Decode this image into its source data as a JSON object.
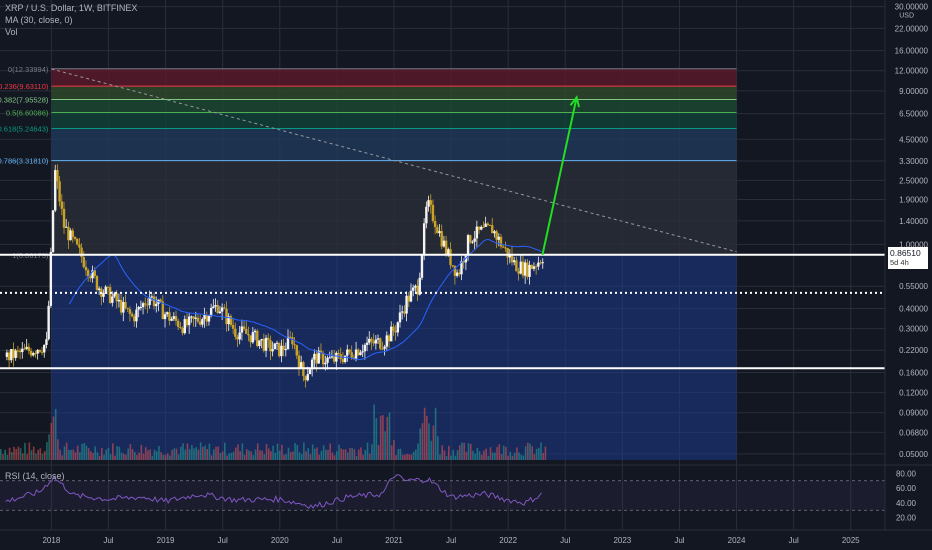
{
  "header": {
    "symbol": "XRP / U.S. Dollar, 1W, BITFINEX",
    "ma": "MA (30, close, 0)",
    "vol": "Vol",
    "rsi": "RSI (14, close)"
  },
  "price_tag": {
    "value": "0.86510",
    "countdown": "5d 4h"
  },
  "colors": {
    "background": "#131722",
    "candle_up": "#f4f4f4",
    "candle_down": "#c9a227",
    "ma_line": "#2962ff",
    "rsi_line": "#7e57c2",
    "arrow": "#22dd22",
    "support_line": "#ffffff",
    "blue_zone": "#1e3a8a"
  },
  "chart_data": {
    "type": "candlestick",
    "scale": "log",
    "y_unit": "USD",
    "y_ticks": [
      30.0,
      22.0,
      16.0,
      12.0,
      9.0,
      6.5,
      4.5,
      3.3,
      2.5,
      1.9,
      1.4,
      1.0,
      0.55,
      0.4,
      0.3,
      0.22,
      0.16,
      0.12,
      0.09,
      0.068,
      0.05
    ],
    "y_tick_labels": [
      "30.00000",
      "22.00000",
      "16.00000",
      "12.00000",
      "9.00000",
      "6.50000",
      "4.50000",
      "3.30000",
      "2.50000",
      "1.90000",
      "1.40000",
      "1.00000",
      "0.55000",
      "0.40000",
      "0.30000",
      "0.22000",
      "0.16000",
      "0.12000",
      "0.09000",
      "0.06800",
      "0.05000"
    ],
    "top_tick_suffix": "USD",
    "x_ticks": [
      "2018",
      "Jul",
      "2019",
      "Jul",
      "2020",
      "Jul",
      "2021",
      "Jul",
      "2022",
      "Jul",
      "2023",
      "Jul",
      "2024",
      "Jul",
      "2025"
    ],
    "x_tick_dates": [
      2018.0,
      2018.5,
      2019.0,
      2019.5,
      2020.0,
      2020.5,
      2021.0,
      2021.5,
      2022.0,
      2022.5,
      2023.0,
      2023.5,
      2024.0,
      2024.5,
      2025.0
    ],
    "fib_levels": [
      {
        "label": "0(12.33994)",
        "ratio": 0,
        "price": 12.33994,
        "color": "#787b86"
      },
      {
        "label": "0.236(9.63110)",
        "ratio": 0.236,
        "price": 9.6311,
        "color": "#f23645"
      },
      {
        "label": "0.382(7.95528)",
        "ratio": 0.382,
        "price": 7.95528,
        "color": "#81c784"
      },
      {
        "label": "0.5(6.60086)",
        "ratio": 0.5,
        "price": 6.60086,
        "color": "#4caf50"
      },
      {
        "label": "0.618(5.24643)",
        "ratio": 0.618,
        "price": 5.24643,
        "color": "#089981"
      },
      {
        "label": "0.786(3.31810)",
        "ratio": 0.786,
        "price": 3.3181,
        "color": "#64b5f6"
      },
      {
        "label": "1(0.86173)",
        "ratio": 1,
        "price": 0.86173,
        "color": "#787b86"
      }
    ],
    "horizontal_lines": [
      {
        "price": 0.86173,
        "style": "solid"
      },
      {
        "price": 0.5,
        "style": "dotted"
      },
      {
        "price": 0.17,
        "style": "solid"
      }
    ],
    "trendline": {
      "from": [
        2018.0,
        12.3
      ],
      "to": [
        2024.0,
        0.9
      ],
      "style": "dashed"
    },
    "target_arrow": {
      "from": [
        2022.3,
        0.86
      ],
      "to": [
        2022.6,
        8.2
      ]
    },
    "price_series": {
      "x": [
        2017.6,
        2017.8,
        2017.95,
        2018.02,
        2018.1,
        2018.25,
        2018.4,
        2018.55,
        2018.7,
        2018.85,
        2019.0,
        2019.15,
        2019.3,
        2019.45,
        2019.6,
        2019.75,
        2019.9,
        2020.0,
        2020.1,
        2020.2,
        2020.3,
        2020.45,
        2020.6,
        2020.75,
        2020.9,
        2021.0,
        2021.1,
        2021.2,
        2021.28,
        2021.35,
        2021.45,
        2021.55,
        2021.65,
        2021.75,
        2021.85,
        2021.95,
        2022.05,
        2022.15,
        2022.25,
        2022.3
      ],
      "close": [
        0.2,
        0.22,
        0.24,
        2.9,
        1.3,
        0.85,
        0.55,
        0.45,
        0.35,
        0.48,
        0.36,
        0.31,
        0.35,
        0.42,
        0.29,
        0.27,
        0.23,
        0.22,
        0.26,
        0.15,
        0.2,
        0.19,
        0.21,
        0.24,
        0.25,
        0.3,
        0.45,
        0.55,
        1.8,
        1.4,
        0.9,
        0.65,
        1.1,
        1.2,
        1.25,
        0.95,
        0.75,
        0.7,
        0.78,
        0.86
      ]
    },
    "rsi": {
      "ticks": [
        80,
        60,
        40,
        20
      ],
      "tick_labels": [
        "80.00",
        "60.00",
        "40.00",
        "20.00"
      ],
      "band": [
        30,
        70
      ],
      "x": [
        2017.6,
        2017.9,
        2018.02,
        2018.2,
        2018.5,
        2018.8,
        2019.0,
        2019.3,
        2019.6,
        2020.0,
        2020.3,
        2020.6,
        2020.9,
        2021.0,
        2021.1,
        2021.3,
        2021.5,
        2021.8,
        2022.0,
        2022.15,
        2022.3
      ],
      "values": [
        42,
        55,
        75,
        50,
        45,
        48,
        42,
        52,
        44,
        45,
        35,
        48,
        52,
        78,
        70,
        72,
        48,
        52,
        44,
        40,
        52
      ]
    }
  }
}
